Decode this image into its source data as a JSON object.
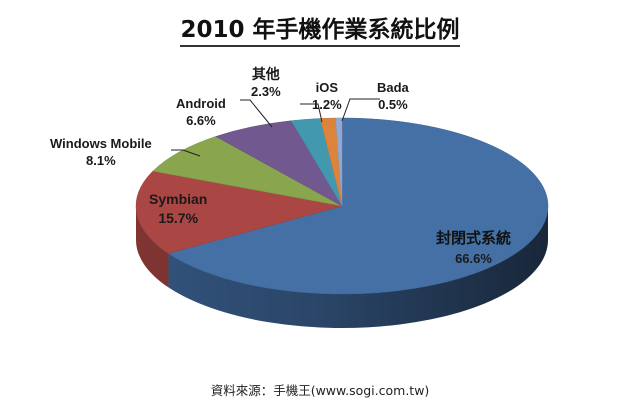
{
  "chart_data": {
    "type": "pie",
    "title": "2010 年手機作業系統比例",
    "categories": [
      "封閉式系統",
      "Symbian",
      "Windows Mobile",
      "Android",
      "其他",
      "iOS",
      "Bada"
    ],
    "values": [
      66.6,
      15.7,
      8.1,
      6.6,
      2.3,
      1.2,
      0.5
    ],
    "value_labels": [
      "66.6%",
      "15.7%",
      "8.1%",
      "6.6%",
      "2.3%",
      "1.2%",
      "0.5%"
    ],
    "colors": [
      "#4470A6",
      "#AA4643",
      "#89A54E",
      "#71588F",
      "#4198AF",
      "#DB843D",
      "#93A9CF"
    ],
    "style": "3d-pie",
    "legend": "none (data labels with leader lines)",
    "source": "資料來源：手機王(www.sogi.com.tw)"
  },
  "labels": {
    "closed": {
      "name": "封閉式系統",
      "pct": "66.6%"
    },
    "symbian": {
      "name": "Symbian",
      "pct": "15.7%"
    },
    "winmobile": {
      "name": "Windows Mobile",
      "pct": "8.1%"
    },
    "android": {
      "name": "Android",
      "pct": "6.6%"
    },
    "other": {
      "name": "其他",
      "pct": "2.3%"
    },
    "ios": {
      "name": "iOS",
      "pct": "1.2%"
    },
    "bada": {
      "name": "Bada",
      "pct": "0.5%"
    }
  },
  "title": "2010 年手機作業系統比例",
  "source": "資料來源：手機王(www.sogi.com.tw)"
}
